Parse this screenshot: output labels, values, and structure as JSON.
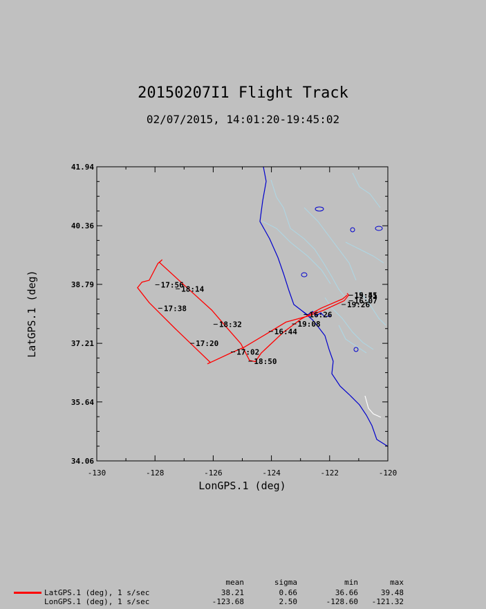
{
  "title": "20150207I1 Flight Track",
  "subtitle": "02/07/2015, 14:01:20-19:45:02",
  "colors": {
    "background": "#c0c0c0",
    "track": "#ff0000",
    "coast": "#0000cc",
    "rivers": "#add8e6"
  },
  "chart_data": {
    "type": "line",
    "xlabel": "LonGPS.1 (deg)",
    "ylabel": "LatGPS.1 (deg)",
    "xlim": [
      -130,
      -120
    ],
    "ylim": [
      34.06,
      41.94
    ],
    "xticks": [
      -130,
      -128,
      -126,
      -124,
      -122,
      -120
    ],
    "xtick_labels": [
      "-130",
      "-128",
      "-126",
      "-124",
      "-122",
      "-120"
    ],
    "yticks": [
      34.06,
      35.64,
      37.21,
      38.79,
      40.36,
      41.94
    ],
    "ytick_labels": [
      "34.06",
      "35.64",
      "37.21",
      "38.79",
      "40.36",
      "41.94"
    ],
    "series": [
      {
        "name": "LatGPS.1 (deg), 1 s/sec",
        "points": [
          [
            -121.4,
            38.55
          ],
          [
            -121.35,
            38.5
          ],
          [
            -121.5,
            38.35
          ],
          [
            -122.2,
            38.1
          ],
          [
            -122.7,
            37.95
          ],
          [
            -123.5,
            37.78
          ],
          [
            -124.2,
            37.45
          ],
          [
            -124.95,
            37.1
          ],
          [
            -125.4,
            36.95
          ],
          [
            -126.2,
            36.66
          ],
          [
            -126.1,
            36.7
          ],
          [
            -127.3,
            37.6
          ],
          [
            -128.2,
            38.3
          ],
          [
            -128.6,
            38.7
          ],
          [
            -128.45,
            38.85
          ],
          [
            -128.2,
            38.9
          ],
          [
            -127.9,
            39.35
          ],
          [
            -127.75,
            39.45
          ],
          [
            -127.85,
            39.38
          ],
          [
            -126.9,
            38.7
          ],
          [
            -126.05,
            38.1
          ],
          [
            -125.5,
            37.6
          ],
          [
            -125.05,
            37.2
          ],
          [
            -124.75,
            36.75
          ],
          [
            -124.55,
            36.72
          ],
          [
            -124.35,
            36.95
          ],
          [
            -123.6,
            37.5
          ],
          [
            -123.0,
            37.85
          ],
          [
            -122.3,
            38.15
          ],
          [
            -121.55,
            38.4
          ],
          [
            -121.4,
            38.5
          ]
        ]
      }
    ],
    "time_labels": [
      {
        "text": "17:56",
        "lon": -127.8,
        "lat": 38.78
      },
      {
        "text": "18:14",
        "lon": -127.1,
        "lat": 38.67
      },
      {
        "text": "17:38",
        "lon": -127.7,
        "lat": 38.15
      },
      {
        "text": "18:32",
        "lon": -125.8,
        "lat": 37.72
      },
      {
        "text": "17:20",
        "lon": -126.6,
        "lat": 37.21
      },
      {
        "text": "17:02",
        "lon": -125.2,
        "lat": 36.98
      },
      {
        "text": "18:50",
        "lon": -124.6,
        "lat": 36.73
      },
      {
        "text": "16:44",
        "lon": -123.9,
        "lat": 37.53
      },
      {
        "text": "19:08",
        "lon": -123.1,
        "lat": 37.73
      },
      {
        "text": "16:26",
        "lon": -122.7,
        "lat": 37.98
      },
      {
        "text": "19:26",
        "lon": -121.4,
        "lat": 38.25
      },
      {
        "text": "16:07",
        "lon": -121.15,
        "lat": 38.35
      },
      {
        "text": "19:45",
        "lon": -121.15,
        "lat": 38.5
      },
      {
        "text": "15:51",
        "lon": -121.15,
        "lat": 38.5
      }
    ],
    "legend_position": "bottom-left"
  },
  "stats": {
    "headers": [
      "mean",
      "sigma",
      "min",
      "max"
    ],
    "rows": [
      {
        "label": "LatGPS.1 (deg), 1 s/sec",
        "values": [
          "38.21",
          "0.66",
          "36.66",
          "39.48"
        ]
      },
      {
        "label": "LonGPS.1 (deg), 1 s/sec",
        "values": [
          "-123.68",
          "2.50",
          "-128.60",
          "-121.32"
        ]
      }
    ]
  }
}
